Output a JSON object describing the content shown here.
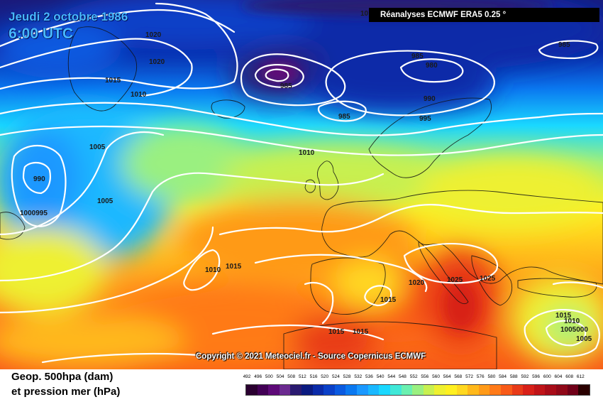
{
  "header": {
    "date": "Jeudi 2 octobre 1986",
    "time": "6:00 UTC",
    "source": "Réanalyses ECMWF ERA5 0.25 °"
  },
  "copyright": "Copyright © 2021 Meteociel.fr - Source Copernicus ECMWF",
  "footer": {
    "line1": "Geop. 500hpa (dam)",
    "line2": "et pression mer (hPa)"
  },
  "legend": {
    "ticks": [
      "492",
      "496",
      "500",
      "504",
      "508",
      "512",
      "516",
      "520",
      "524",
      "528",
      "532",
      "536",
      "540",
      "544",
      "548",
      "552",
      "556",
      "560",
      "564",
      "568",
      "572",
      "576",
      "580",
      "584",
      "588",
      "592",
      "596",
      "600",
      "604",
      "608",
      "612"
    ],
    "colors": [
      "#2a0030",
      "#420055",
      "#5e0a78",
      "#6b2a90",
      "#2a1a70",
      "#0a1a80",
      "#0a2aa8",
      "#0a40c8",
      "#0a5ae0",
      "#0a78f0",
      "#1a98ff",
      "#1ab8ff",
      "#1ad8ff",
      "#40e8d8",
      "#6af0b0",
      "#9af080",
      "#c8f050",
      "#eef030",
      "#fff020",
      "#ffd820",
      "#ffb81a",
      "#ff9a18",
      "#ff7a18",
      "#f85a18",
      "#e83a18",
      "#d82018",
      "#c01418",
      "#a80c18",
      "#900818",
      "#700018",
      "#2a0000"
    ]
  },
  "pressure_labels": [
    "1020",
    "1020",
    "1015",
    "1010",
    "985",
    "985",
    "980",
    "990",
    "995",
    "985",
    "985",
    "1005",
    "990",
    "1005",
    "1000995",
    "1010",
    "1010",
    "1015",
    "1020",
    "1025",
    "1025",
    "1015",
    "1015",
    "1015",
    "1015",
    "1010",
    "1005000",
    "1005",
    "10"
  ],
  "colors": {
    "title_color": "#47b8ff",
    "isobar_color": "#ffffff",
    "coast_color": "#111111"
  }
}
